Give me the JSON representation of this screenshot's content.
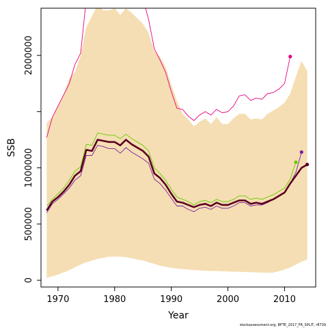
{
  "chart_data": {
    "type": "line",
    "xlabel": "Year",
    "ylabel": "SSB",
    "xlim": [
      1967,
      2015.5
    ],
    "ylim": [
      -60000,
      2420000
    ],
    "x_ticks": [
      1970,
      1980,
      1990,
      2000,
      2010
    ],
    "y_ticks": [
      0,
      500000,
      1000000,
      1500000,
      2000000
    ],
    "y_tick_labels": [
      "0",
      "500000",
      "1000000",
      "",
      "2000000"
    ],
    "colors": {
      "band": "#f5deb3",
      "main": "#5a0020",
      "magenta": "#e6007e",
      "green": "#66cc00",
      "purple": "#7a1fa2"
    },
    "band": {
      "x": [
        1968,
        1969,
        1970,
        1971,
        1972,
        1973,
        1974,
        1975,
        1976,
        1977,
        1978,
        1979,
        1980,
        1981,
        1982,
        1983,
        1984,
        1985,
        1986,
        1987,
        1988,
        1989,
        1990,
        1991,
        1992,
        1993,
        1994,
        1995,
        1996,
        1997,
        1998,
        1999,
        2000,
        2001,
        2002,
        2003,
        2004,
        2005,
        2006,
        2007,
        2008,
        2009,
        2010,
        2011,
        2012,
        2013,
        2014
      ],
      "upper": [
        1400000,
        1450000,
        1550000,
        1650000,
        1800000,
        1850000,
        2000000,
        2250000,
        2350000,
        2450000,
        2400000,
        2400000,
        2420000,
        2360000,
        2420000,
        2380000,
        2330000,
        2280000,
        2200000,
        2040000,
        1990000,
        1900000,
        1740000,
        1600000,
        1480000,
        1430000,
        1370000,
        1410000,
        1440000,
        1390000,
        1450000,
        1390000,
        1390000,
        1440000,
        1480000,
        1480000,
        1430000,
        1440000,
        1430000,
        1480000,
        1510000,
        1540000,
        1580000,
        1660000,
        1810000,
        1950000,
        1860000
      ],
      "lower": [
        20000,
        35000,
        50000,
        70000,
        90000,
        115000,
        140000,
        160000,
        175000,
        190000,
        200000,
        210000,
        210000,
        210000,
        205000,
        195000,
        185000,
        175000,
        160000,
        145000,
        130000,
        120000,
        110000,
        105000,
        100000,
        95000,
        90000,
        88000,
        85000,
        83000,
        82000,
        80000,
        78000,
        76000,
        75000,
        73000,
        72000,
        70000,
        68000,
        66000,
        68000,
        80000,
        95000,
        115000,
        140000,
        165000,
        185000
      ]
    },
    "series": [
      {
        "color": "#e6007e",
        "width": 0.9,
        "x": [
          1968,
          1969,
          1970,
          1971,
          1972,
          1973,
          1974,
          1975,
          1976,
          1977,
          1978,
          1979,
          1980,
          1981,
          1982,
          1983,
          1984,
          1985,
          1986,
          1987,
          1988,
          1989,
          1990,
          1991,
          1992,
          1993,
          1994,
          1995,
          1996,
          1997,
          1998,
          1999,
          2000,
          2001,
          2002,
          2003,
          2004,
          2005,
          2006,
          2007,
          2008,
          2009,
          2010,
          2011
        ],
        "y": [
          1270000,
          1450000,
          1550000,
          1650000,
          1750000,
          1920000,
          2020000,
          2500000,
          2620000,
          2600000,
          2660000,
          2640000,
          2660000,
          2640000,
          2660000,
          2610000,
          2580000,
          2500000,
          2320000,
          2060000,
          1960000,
          1850000,
          1680000,
          1530000,
          1520000,
          1460000,
          1420000,
          1470000,
          1500000,
          1470000,
          1520000,
          1490000,
          1500000,
          1550000,
          1640000,
          1650000,
          1600000,
          1620000,
          1610000,
          1660000,
          1670000,
          1700000,
          1750000,
          1990000
        ],
        "end_point": [
          2011,
          1990000
        ]
      },
      {
        "color": "#66cc00",
        "width": 0.9,
        "x": [
          1968,
          1969,
          1970,
          1971,
          1972,
          1973,
          1974,
          1975,
          1976,
          1977,
          1978,
          1979,
          1980,
          1981,
          1982,
          1983,
          1984,
          1985,
          1986,
          1987,
          1988,
          1989,
          1990,
          1991,
          1992,
          1993,
          1994,
          1995,
          1996,
          1997,
          1998,
          1999,
          2000,
          2001,
          2002,
          2003,
          2004,
          2005,
          2006,
          2007,
          2008,
          2009,
          2010,
          2011,
          2012
        ],
        "y": [
          660000,
          720000,
          770000,
          820000,
          890000,
          970000,
          1010000,
          1210000,
          1200000,
          1310000,
          1300000,
          1290000,
          1290000,
          1260000,
          1300000,
          1260000,
          1230000,
          1200000,
          1150000,
          1000000,
          950000,
          890000,
          810000,
          740000,
          720000,
          700000,
          670000,
          700000,
          710000,
          690000,
          720000,
          700000,
          700000,
          720000,
          750000,
          750000,
          720000,
          730000,
          720000,
          740000,
          760000,
          790000,
          820000,
          900000,
          1050000
        ],
        "end_point": [
          2012,
          1050000
        ]
      },
      {
        "color": "#7a1fa2",
        "width": 0.9,
        "x": [
          1968,
          1969,
          1970,
          1971,
          1972,
          1973,
          1974,
          1975,
          1976,
          1977,
          1978,
          1979,
          1980,
          1981,
          1982,
          1983,
          1984,
          1985,
          1986,
          1987,
          1988,
          1989,
          1990,
          1991,
          1992,
          1993,
          1994,
          1995,
          1996,
          1997,
          1998,
          1999,
          2000,
          2001,
          2002,
          2003,
          2004,
          2005,
          2006,
          2007,
          2008,
          2009,
          2010,
          2011,
          2012,
          2013
        ],
        "y": [
          600000,
          680000,
          720000,
          770000,
          820000,
          890000,
          930000,
          1110000,
          1110000,
          1200000,
          1190000,
          1170000,
          1170000,
          1130000,
          1180000,
          1140000,
          1110000,
          1080000,
          1040000,
          900000,
          860000,
          800000,
          730000,
          660000,
          660000,
          630000,
          610000,
          640000,
          650000,
          630000,
          660000,
          640000,
          640000,
          660000,
          690000,
          690000,
          660000,
          670000,
          670000,
          690000,
          720000,
          750000,
          780000,
          860000,
          960000,
          1140000
        ],
        "end_point": [
          2013,
          1140000
        ]
      },
      {
        "color": "#5a0020",
        "width": 2.6,
        "x": [
          1968,
          1969,
          1970,
          1971,
          1972,
          1973,
          1974,
          1975,
          1976,
          1977,
          1978,
          1979,
          1980,
          1981,
          1982,
          1983,
          1984,
          1985,
          1986,
          1987,
          1988,
          1989,
          1990,
          1991,
          1992,
          1993,
          1994,
          1995,
          1996,
          1997,
          1998,
          1999,
          2000,
          2001,
          2002,
          2003,
          2004,
          2005,
          2006,
          2007,
          2008,
          2009,
          2010,
          2011,
          2012,
          2013,
          2014
        ],
        "y": [
          620000,
          700000,
          740000,
          790000,
          850000,
          930000,
          970000,
          1160000,
          1150000,
          1250000,
          1240000,
          1230000,
          1230000,
          1200000,
          1250000,
          1210000,
          1180000,
          1150000,
          1100000,
          950000,
          910000,
          850000,
          770000,
          700000,
          690000,
          670000,
          650000,
          670000,
          680000,
          660000,
          690000,
          670000,
          670000,
          690000,
          710000,
          710000,
          680000,
          690000,
          680000,
          700000,
          720000,
          750000,
          780000,
          860000,
          930000,
          1000000,
          1030000
        ],
        "end_point": [
          2014,
          1030000
        ]
      }
    ],
    "footnote": "stockassessment.org, BFTE_2017_FR_SPLIT, r8739"
  }
}
